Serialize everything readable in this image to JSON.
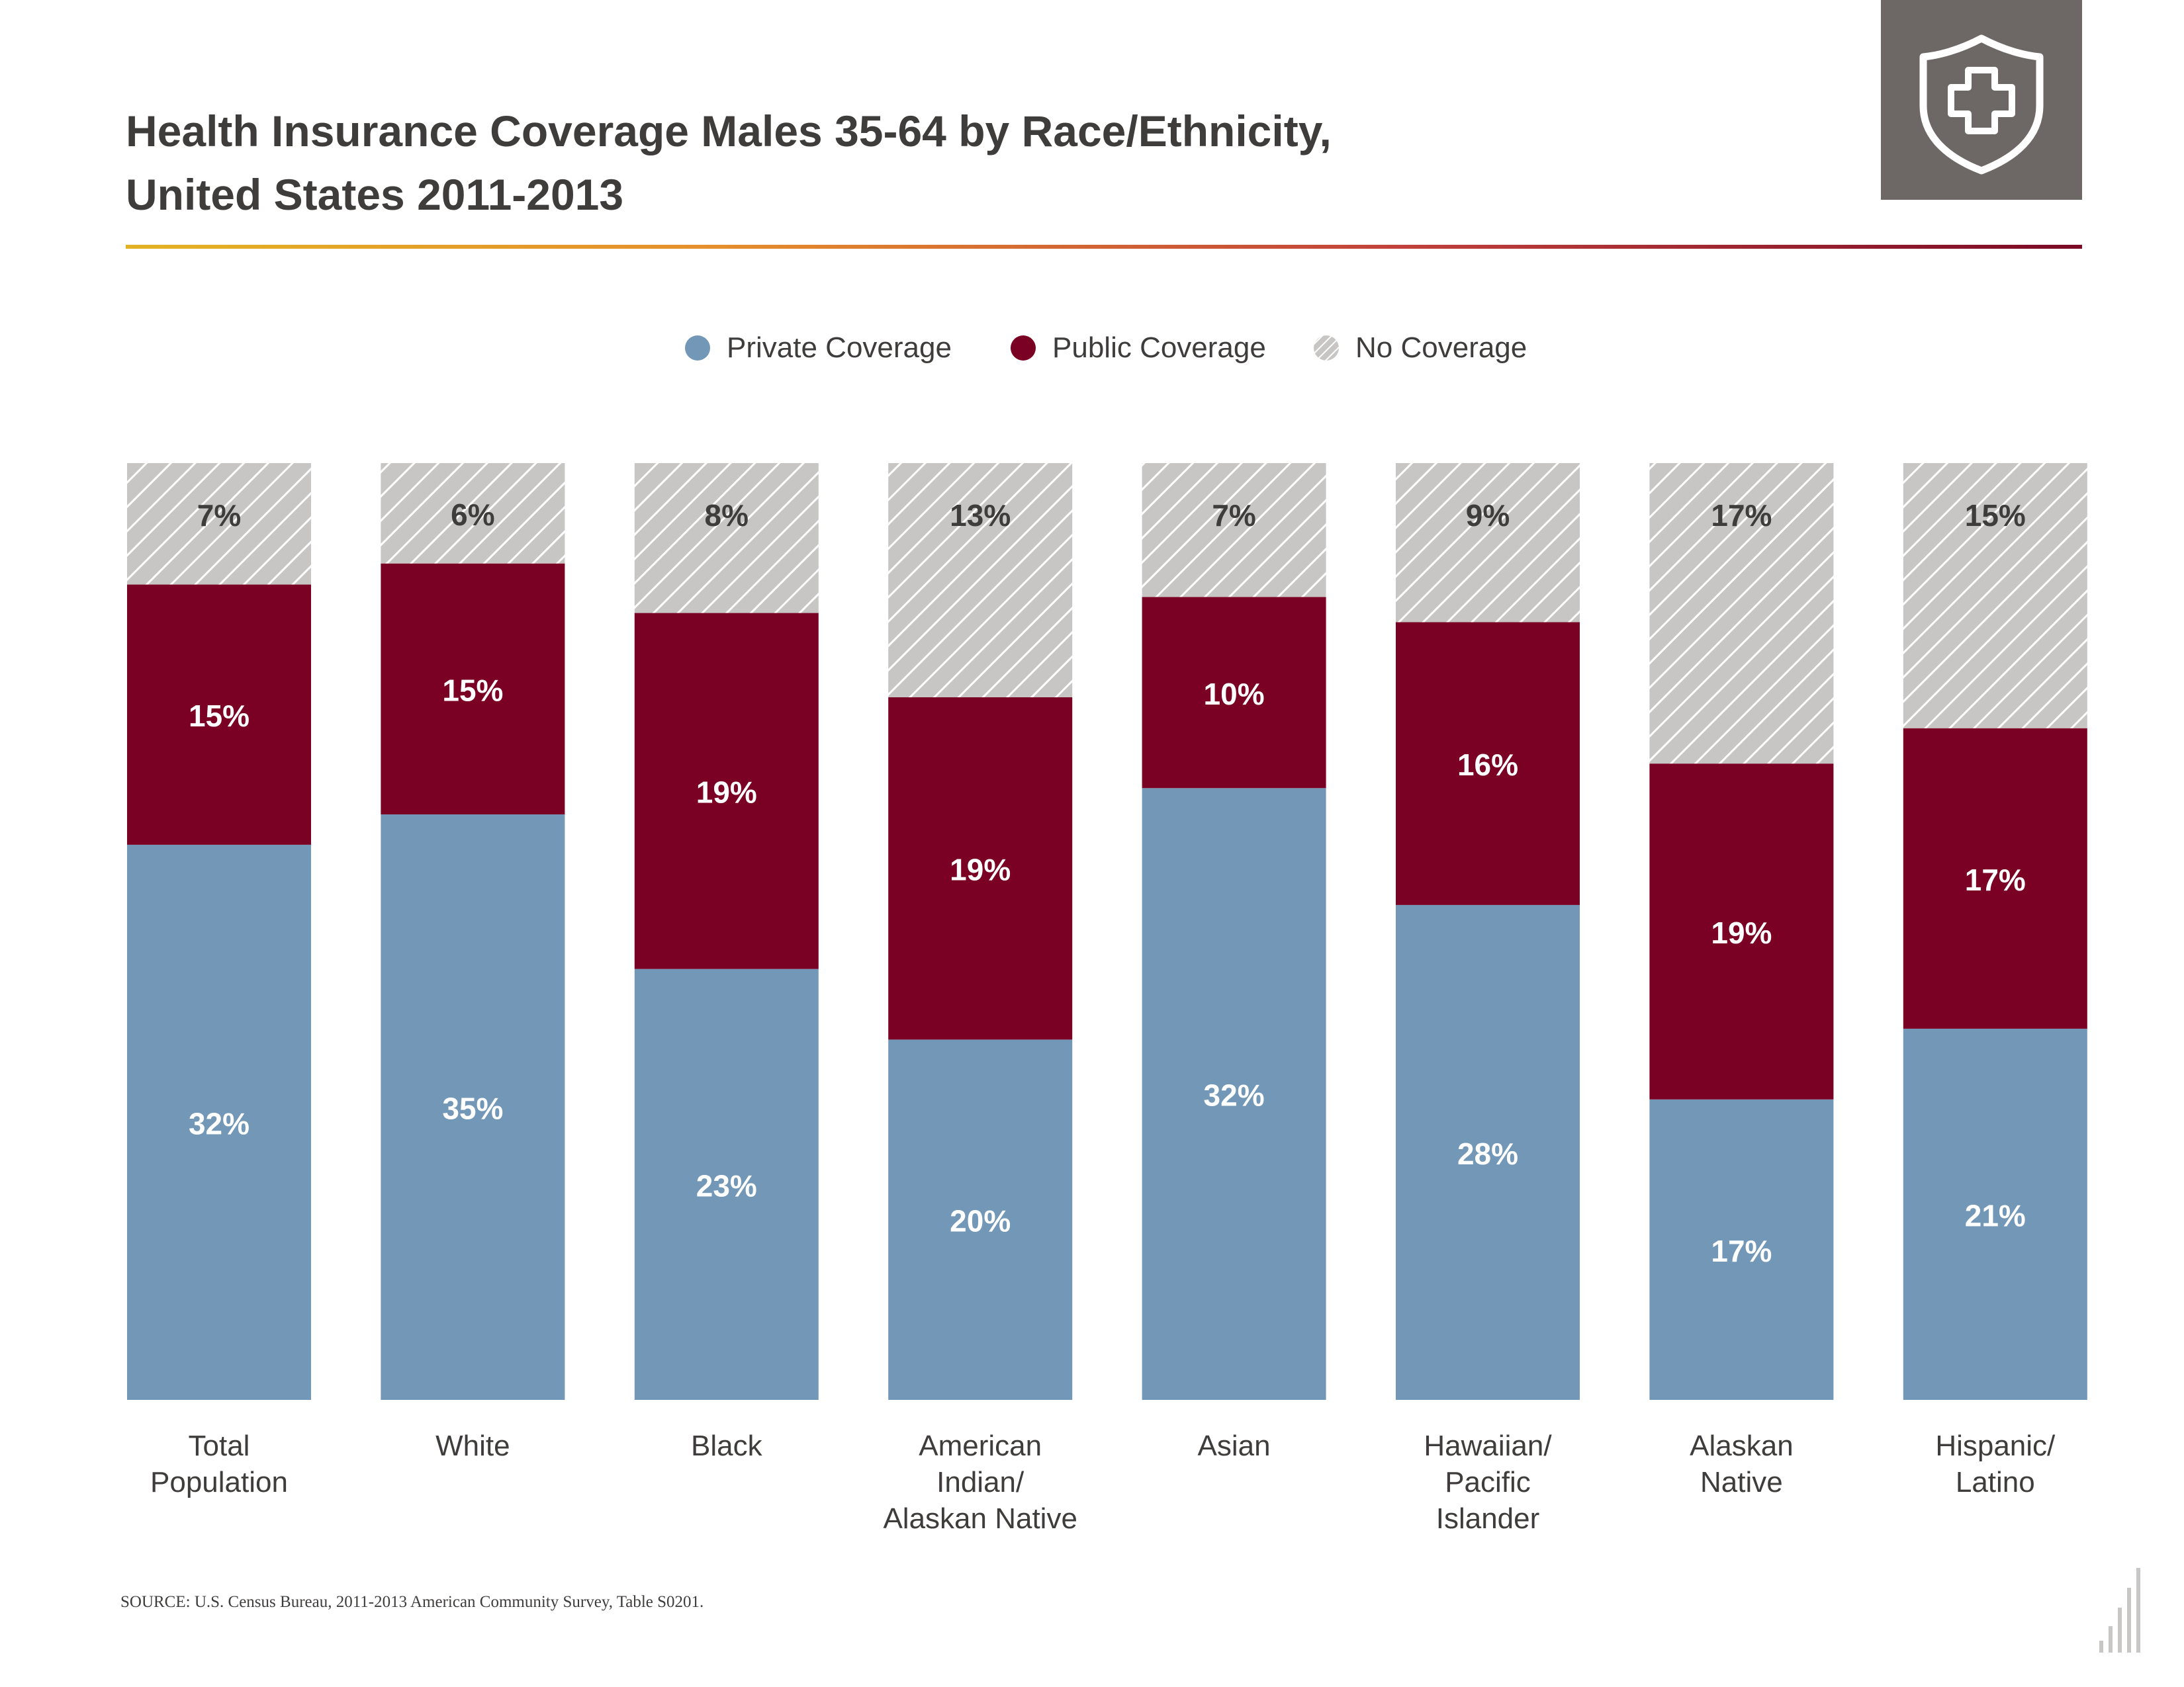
{
  "title": {
    "line1": "Health Insurance Coverage Males 35-64 by Race/Ethnicity,",
    "line2": "United States 2011-2013"
  },
  "logo": {
    "icon": "shield-plus-icon"
  },
  "legend": {
    "items": [
      {
        "label": "Private Coverage",
        "swatch": "#7397b7"
      },
      {
        "label": "Public Coverage",
        "swatch": "#7a0024"
      },
      {
        "label": "No Coverage",
        "swatch": "hatched-gray"
      }
    ]
  },
  "chart_data": {
    "type": "bar",
    "stacked": true,
    "categories": [
      [
        "Total",
        "Population"
      ],
      [
        "White"
      ],
      [
        "Black"
      ],
      [
        "American",
        "Indian/",
        "Alaskan Native"
      ],
      [
        "Asian"
      ],
      [
        "Hawaiian/",
        "Pacific",
        "Islander"
      ],
      [
        "Alaskan",
        "Native"
      ],
      [
        "Hispanic/",
        "Latino"
      ]
    ],
    "series": [
      {
        "name": "Private Coverage",
        "color": "#7397b7",
        "values": [
          32,
          35,
          23,
          20,
          32,
          28,
          17,
          21
        ]
      },
      {
        "name": "Public Coverage",
        "color": "#7a0024",
        "values": [
          15,
          15,
          19,
          19,
          10,
          16,
          19,
          17
        ]
      },
      {
        "name": "No Coverage",
        "color": "#c8c6c5",
        "pattern": "hatched",
        "values": [
          7,
          6,
          8,
          13,
          7,
          9,
          17,
          15
        ]
      }
    ],
    "value_format": "percent",
    "legend_position": "top-center",
    "grid": false
  },
  "source": "SOURCE: U.S. Census Bureau, 2011-2013 American Community Survey, Table S0201."
}
